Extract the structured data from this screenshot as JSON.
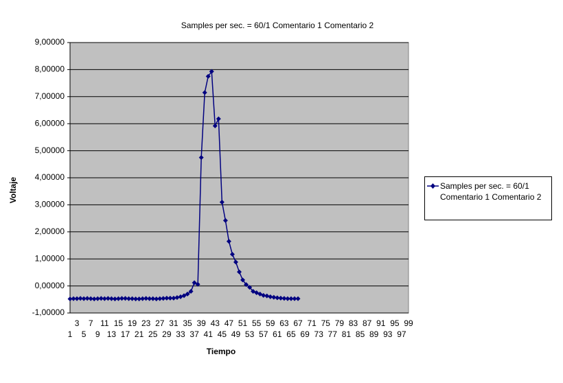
{
  "chart_data": {
    "type": "line",
    "title": "Samples per sec. = 60/1 Comentario 1 Comentario 2",
    "x_label": "Tiempo",
    "y_label": "Voltaje",
    "categories": [
      1,
      null,
      3,
      null,
      5,
      null,
      7,
      null,
      9,
      null,
      11,
      null,
      13,
      null,
      15,
      null,
      17,
      null,
      19,
      null,
      21,
      null,
      23,
      null,
      25,
      null,
      27,
      null,
      29,
      null,
      31,
      null,
      33,
      null,
      35,
      null,
      37,
      null,
      39,
      null,
      41,
      null,
      43,
      null,
      45,
      null,
      47,
      null,
      49,
      null,
      51,
      null,
      53,
      null,
      55,
      null,
      57,
      null,
      59,
      null,
      61,
      null,
      63,
      null,
      65,
      null,
      67,
      null,
      69,
      null,
      71,
      null,
      73,
      null,
      75,
      null,
      77,
      null,
      79,
      null,
      81,
      null,
      83,
      null,
      85,
      null,
      87,
      null,
      89,
      null,
      91,
      null,
      93,
      null,
      95,
      null,
      97,
      null,
      99
    ],
    "series": [
      {
        "name": "Samples per sec. = 60/1 Comentario 1 Comentario 2",
        "color": "#000080",
        "values": [
          -0.48,
          -0.47,
          -0.47,
          -0.46,
          -0.47,
          -0.46,
          -0.47,
          -0.48,
          -0.47,
          -0.46,
          -0.47,
          -0.46,
          -0.47,
          -0.48,
          -0.47,
          -0.46,
          -0.46,
          -0.47,
          -0.47,
          -0.48,
          -0.48,
          -0.47,
          -0.46,
          -0.47,
          -0.47,
          -0.48,
          -0.47,
          -0.46,
          -0.45,
          -0.45,
          -0.45,
          -0.43,
          -0.4,
          -0.36,
          -0.3,
          -0.2,
          0.12,
          0.06,
          4.75,
          7.15,
          7.75,
          7.93,
          5.92,
          6.18,
          3.1,
          2.42,
          1.65,
          1.17,
          0.88,
          0.52,
          0.22,
          0.05,
          -0.05,
          -0.2,
          -0.25,
          -0.3,
          -0.35,
          -0.37,
          -0.4,
          -0.42,
          -0.44,
          -0.45,
          -0.46,
          -0.47,
          -0.47,
          -0.47,
          -0.47,
          null,
          null,
          null,
          null,
          null,
          null,
          null,
          null,
          null,
          null,
          null,
          null,
          null,
          null,
          null,
          null,
          null,
          null,
          null,
          null,
          null,
          null,
          null,
          null,
          null,
          null,
          null,
          null,
          null,
          null,
          null,
          null
        ]
      }
    ],
    "ylim": [
      -1,
      9
    ],
    "yticks": [
      {
        "value": -1,
        "label": "-1,00000"
      },
      {
        "value": 0,
        "label": "0,00000"
      },
      {
        "value": 1,
        "label": "1,00000"
      },
      {
        "value": 2,
        "label": "2,00000"
      },
      {
        "value": 3,
        "label": "3,00000"
      },
      {
        "value": 4,
        "label": "4,00000"
      },
      {
        "value": 5,
        "label": "5,00000"
      },
      {
        "value": 6,
        "label": "6,00000"
      },
      {
        "value": 7,
        "label": "7,00000"
      },
      {
        "value": 8,
        "label": "8,00000"
      },
      {
        "value": 9,
        "label": "9,00000"
      }
    ],
    "grid": true,
    "legend": "right",
    "background": "#c0c0c0"
  }
}
